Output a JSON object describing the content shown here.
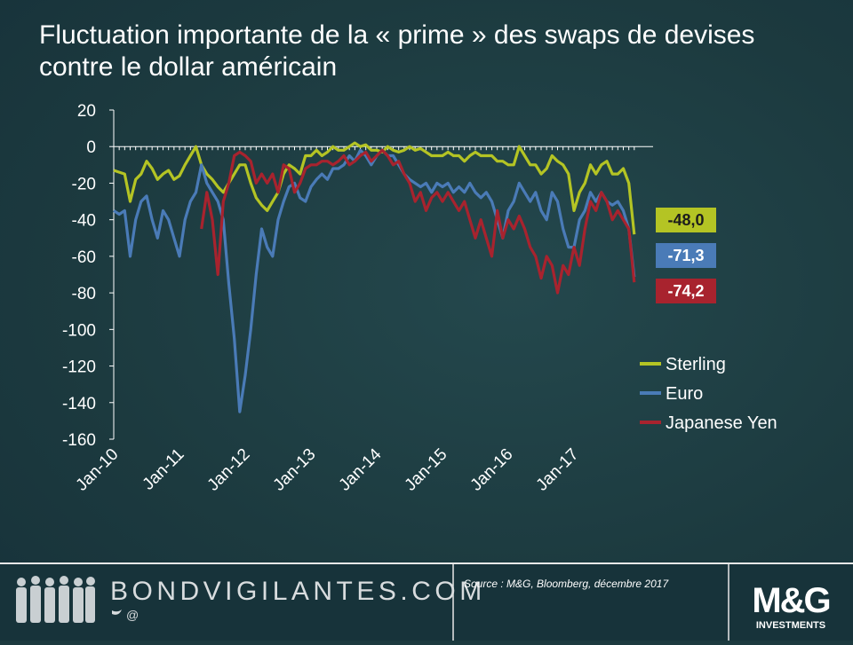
{
  "chart_data": {
    "type": "line",
    "title": "Fluctuation importante de la « prime » des swaps de devises contre le dollar américain",
    "categories": [
      "Jan-10",
      null,
      null,
      null,
      null,
      null,
      null,
      null,
      null,
      null,
      null,
      null,
      "Jan-11",
      null,
      null,
      null,
      null,
      null,
      null,
      null,
      null,
      null,
      null,
      null,
      "Jan-12",
      null,
      null,
      null,
      null,
      null,
      null,
      null,
      null,
      null,
      null,
      null,
      "Jan-13",
      null,
      null,
      null,
      null,
      null,
      null,
      null,
      null,
      null,
      null,
      null,
      "Jan-14",
      null,
      null,
      null,
      null,
      null,
      null,
      null,
      null,
      null,
      null,
      null,
      "Jan-15",
      null,
      null,
      null,
      null,
      null,
      null,
      null,
      null,
      null,
      null,
      null,
      "Jan-16",
      null,
      null,
      null,
      null,
      null,
      null,
      null,
      null,
      null,
      null,
      null,
      "Jan-17",
      null,
      null,
      null,
      null,
      null,
      null,
      null,
      null,
      null,
      null,
      null
    ],
    "ylim": [
      -160,
      20
    ],
    "yticks": [
      -160,
      -140,
      -120,
      -100,
      -80,
      -60,
      -40,
      -20,
      0,
      20
    ],
    "series": [
      {
        "name": "Sterling",
        "color": "#b4c424",
        "values": [
          -13,
          -14,
          -15,
          -30,
          -18,
          -15,
          -8,
          -12,
          -18,
          -15,
          -13,
          -18,
          -16,
          -10,
          -5,
          0,
          -10,
          -15,
          -18,
          -22,
          -25,
          -20,
          -15,
          -10,
          -10,
          -20,
          -28,
          -32,
          -35,
          -30,
          -25,
          -15,
          -10,
          -12,
          -15,
          -5,
          -5,
          -2,
          -5,
          -3,
          0,
          -2,
          -2,
          0,
          2,
          0,
          1,
          -2,
          -2,
          -3,
          0,
          -2,
          -3,
          -2,
          0,
          -2,
          -1,
          -3,
          -5,
          -5,
          -5,
          -3,
          -5,
          -5,
          -8,
          -5,
          -3,
          -5,
          -5,
          -5,
          -8,
          -8,
          -10,
          -10,
          0,
          -5,
          -10,
          -10,
          -15,
          -12,
          -5,
          -8,
          -10,
          -15,
          -35,
          -25,
          -20,
          -10,
          -15,
          -10,
          -8,
          -15,
          -15,
          -12,
          -20,
          -48
        ],
        "value_labels": [
          null,
          null,
          null,
          null,
          null,
          null,
          null,
          null,
          null,
          null,
          null,
          null,
          null,
          null,
          null,
          null,
          null,
          null,
          null,
          null,
          null,
          null,
          null,
          null,
          null,
          null,
          null,
          null,
          null,
          null,
          null,
          null,
          null,
          null,
          null,
          null,
          null,
          null,
          null,
          null,
          null,
          null,
          null,
          null,
          null,
          null,
          null,
          null,
          null,
          null,
          null,
          null,
          null,
          null,
          null,
          null,
          null,
          null,
          null,
          null,
          null,
          null,
          null,
          null,
          null,
          null,
          null,
          null,
          null,
          null,
          null,
          null,
          null,
          null,
          null,
          null,
          null,
          null,
          null,
          null,
          null,
          null,
          null,
          null,
          null,
          null,
          null,
          null,
          null,
          null,
          null,
          null,
          null,
          null,
          null,
          "-48,0"
        ]
      },
      {
        "name": "Euro",
        "color": "#4a7bb7",
        "values": [
          -35,
          -37,
          -35,
          -60,
          -40,
          -30,
          -27,
          -40,
          -50,
          -35,
          -40,
          -50,
          -60,
          -40,
          -30,
          -25,
          -10,
          -20,
          -25,
          -30,
          -40,
          -75,
          -105,
          -145,
          -125,
          -100,
          -70,
          -45,
          -55,
          -60,
          -40,
          -30,
          -22,
          -20,
          -28,
          -30,
          -22,
          -18,
          -15,
          -18,
          -12,
          -12,
          -10,
          -5,
          -8,
          -2,
          -5,
          -10,
          -5,
          -2,
          -5,
          -5,
          -10,
          -15,
          -18,
          -20,
          -22,
          -20,
          -25,
          -20,
          -22,
          -20,
          -25,
          -22,
          -25,
          -20,
          -25,
          -28,
          -25,
          -30,
          -40,
          -50,
          -35,
          -30,
          -20,
          -25,
          -30,
          -25,
          -35,
          -40,
          -25,
          -30,
          -45,
          -55,
          -55,
          -40,
          -35,
          -25,
          -30,
          -25,
          -30,
          -32,
          -30,
          -35,
          -45,
          -71.3
        ],
        "value_labels": [
          null,
          null,
          null,
          null,
          null,
          null,
          null,
          null,
          null,
          null,
          null,
          null,
          null,
          null,
          null,
          null,
          null,
          null,
          null,
          null,
          null,
          null,
          null,
          null,
          null,
          null,
          null,
          null,
          null,
          null,
          null,
          null,
          null,
          null,
          null,
          null,
          null,
          null,
          null,
          null,
          null,
          null,
          null,
          null,
          null,
          null,
          null,
          null,
          null,
          null,
          null,
          null,
          null,
          null,
          null,
          null,
          null,
          null,
          null,
          null,
          null,
          null,
          null,
          null,
          null,
          null,
          null,
          null,
          null,
          null,
          null,
          null,
          null,
          null,
          null,
          null,
          null,
          null,
          null,
          null,
          null,
          null,
          null,
          null,
          null,
          null,
          null,
          null,
          null,
          null,
          null,
          null,
          null,
          null,
          null,
          "-71,3"
        ]
      },
      {
        "name": "Japanese Yen",
        "color": "#a8232e",
        "values": [
          null,
          null,
          null,
          null,
          null,
          null,
          null,
          null,
          null,
          null,
          null,
          null,
          null,
          null,
          null,
          null,
          -45,
          -25,
          -40,
          -70,
          -30,
          -20,
          -5,
          -3,
          -5,
          -8,
          -20,
          -15,
          -20,
          -15,
          -25,
          -10,
          -12,
          -25,
          -20,
          -12,
          -10,
          -10,
          -8,
          -8,
          -10,
          -8,
          -5,
          -10,
          -8,
          -5,
          -3,
          -8,
          -5,
          -2,
          -5,
          -10,
          -8,
          -15,
          -20,
          -30,
          -25,
          -35,
          -28,
          -25,
          -30,
          -25,
          -30,
          -35,
          -30,
          -40,
          -50,
          -40,
          -50,
          -60,
          -35,
          -50,
          -40,
          -45,
          -38,
          -45,
          -55,
          -60,
          -72,
          -60,
          -65,
          -80,
          -65,
          -70,
          -55,
          -65,
          -45,
          -30,
          -35,
          -25,
          -30,
          -40,
          -35,
          -40,
          -45,
          -74.2
        ],
        "value_labels": [
          null,
          null,
          null,
          null,
          null,
          null,
          null,
          null,
          null,
          null,
          null,
          null,
          null,
          null,
          null,
          null,
          null,
          null,
          null,
          null,
          null,
          null,
          null,
          null,
          null,
          null,
          null,
          null,
          null,
          null,
          null,
          null,
          null,
          null,
          null,
          null,
          null,
          null,
          null,
          null,
          null,
          null,
          null,
          null,
          null,
          null,
          null,
          null,
          null,
          null,
          null,
          null,
          null,
          null,
          null,
          null,
          null,
          null,
          null,
          null,
          null,
          null,
          null,
          null,
          null,
          null,
          null,
          null,
          null,
          null,
          null,
          null,
          null,
          null,
          null,
          null,
          null,
          null,
          null,
          null,
          null,
          null,
          null,
          null,
          null,
          null,
          null,
          null,
          null,
          null,
          null,
          null,
          null,
          null,
          null,
          "-74,2"
        ]
      }
    ]
  },
  "footer": {
    "site": "BONDVIGILANTES.COM",
    "handle": "@",
    "source": "Source : M&G, Bloomberg, décembre 2017",
    "logo": "M&G",
    "logo_sub": "INVESTMENTS"
  }
}
